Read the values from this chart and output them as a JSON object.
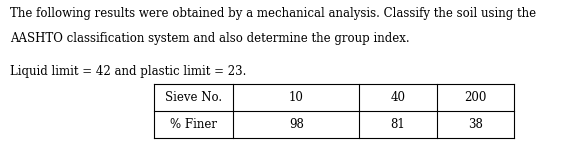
{
  "line1": "The following results were obtained by a mechanical analysis. Classify the soil using the",
  "line2": "AASHTO classification system and also determine the group index.",
  "line3": "Liquid limit = 42 and plastic limit = 23.",
  "table_col0": [
    "Sieve No.",
    "% Finer"
  ],
  "table_col1": [
    "10",
    "98"
  ],
  "table_col2": [
    "40",
    "81"
  ],
  "table_col3": [
    "200",
    "38"
  ],
  "bg_color": "#ffffff",
  "text_color": "#000000",
  "font_size": 8.5,
  "table_font_size": 8.5
}
